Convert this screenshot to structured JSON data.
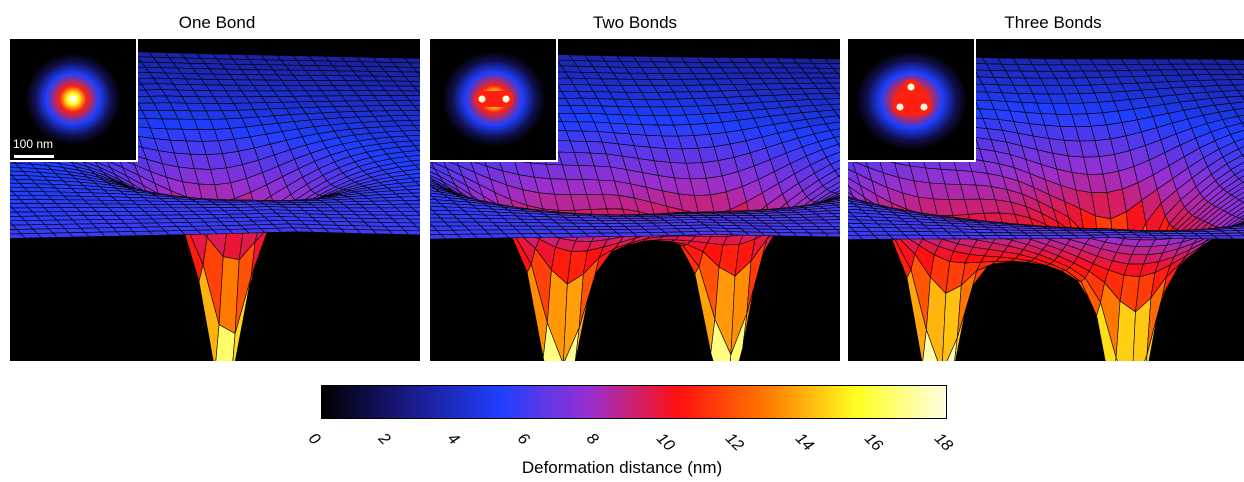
{
  "panels": [
    {
      "title": "One Bond",
      "bonds": 1
    },
    {
      "title": "Two Bonds",
      "bonds": 2
    },
    {
      "title": "Three Bonds",
      "bonds": 3
    }
  ],
  "inset": {
    "scale_label": "100 nm"
  },
  "colorbar": {
    "label": "Deformation distance (nm)",
    "ticks": [
      "0",
      "2",
      "4",
      "6",
      "8",
      "10",
      "12",
      "14",
      "16",
      "18"
    ],
    "range": [
      0,
      18
    ],
    "colormap": [
      "#000000",
      "#1a1a8a",
      "#1f3fff",
      "#9a2fd0",
      "#ff1010",
      "#ff7a00",
      "#ffff20",
      "#fffde0"
    ]
  }
}
